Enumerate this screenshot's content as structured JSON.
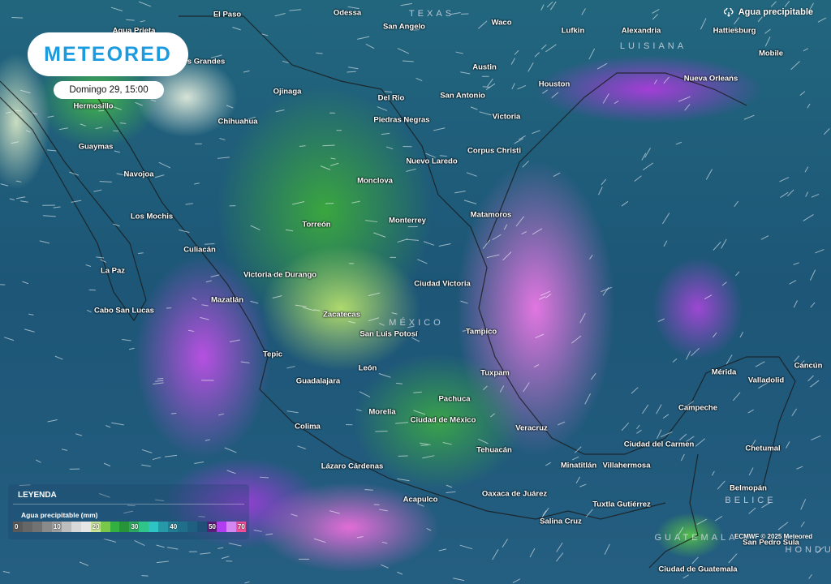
{
  "brand": {
    "logo": "METEORED"
  },
  "timestamp": "Domingo 29, 15:00",
  "layer": {
    "icon": "cloud-rain-icon",
    "label": "Agua precipitable"
  },
  "regions": [
    "TEXAS",
    "LUISIANA",
    "MÉXICO",
    "BELICE",
    "GUATEMALA",
    "HONDURAS"
  ],
  "cities": [
    "El Paso",
    "Odessa",
    "San Angelo",
    "Waco",
    "Lufkin",
    "Alexandria",
    "Hattiesburg",
    "Mobile",
    "Agua Prieta",
    "s Grandes",
    "Austin",
    "Houston",
    "Nueva Orleans",
    "Hermosillo",
    "Ojinaga",
    "Del Rio",
    "San Antonio",
    "Chihuahua",
    "Piedras Negras",
    "Victoria",
    "Guaymas",
    "Corpus Christi",
    "Navojoa",
    "Nuevo Laredo",
    "Monclova",
    "Los Mochis",
    "Matamoros",
    "Torreón",
    "Monterrey",
    "Culiacán",
    "La Paz",
    "Victoria de Durango",
    "Ciudad Victoria",
    "Mazatlán",
    "Cabo San Lucas",
    "Zacatecas",
    "San Luis Potosí",
    "Tampico",
    "Tepic",
    "León",
    "Mérida",
    "Valladolid",
    "Cancún",
    "Guadalajara",
    "Tuxpam",
    "Pachuca",
    "Campeche",
    "Morelia",
    "Ciudad de México",
    "Colima",
    "Veracruz",
    "Tehuacán",
    "Ciudad del Carmen",
    "Chetumal",
    "Lázaro Cárdenas",
    "Minatitlán",
    "Villahermosa",
    "Belmopán",
    "Oaxaca de Juárez",
    "Acapulco",
    "Tuxtla Gutiérrez",
    "Salina Cruz",
    "San Pedro Sula",
    "Ciudad de Guatemala"
  ],
  "legend": {
    "title": "LEYENDA",
    "subtitle": "Agua precipitable (mm)",
    "scale": [
      {
        "color": "#5a5a5a",
        "label": "0"
      },
      {
        "color": "#666666",
        "label": ""
      },
      {
        "color": "#727272",
        "label": ""
      },
      {
        "color": "#8a8a8a",
        "label": ""
      },
      {
        "color": "#a0a0a0",
        "label": "10"
      },
      {
        "color": "#bdbdbd",
        "label": ""
      },
      {
        "color": "#d8d8d8",
        "label": ""
      },
      {
        "color": "#e6e6e6",
        "label": ""
      },
      {
        "color": "#cde69a",
        "label": "20"
      },
      {
        "color": "#7ac84a",
        "label": ""
      },
      {
        "color": "#33b040",
        "label": ""
      },
      {
        "color": "#28943a",
        "label": ""
      },
      {
        "color": "#2ea860",
        "label": "30"
      },
      {
        "color": "#2ec48a",
        "label": ""
      },
      {
        "color": "#2ec4c4",
        "label": ""
      },
      {
        "color": "#2698a8",
        "label": ""
      },
      {
        "color": "#237e94",
        "label": "40"
      },
      {
        "color": "#216e8a",
        "label": ""
      },
      {
        "color": "#1f5f80",
        "label": ""
      },
      {
        "color": "#1e5078",
        "label": ""
      },
      {
        "color": "#5a1e7a",
        "label": "50"
      },
      {
        "color": "#b13cf0",
        "label": ""
      },
      {
        "color": "#d486f2",
        "label": ""
      },
      {
        "color": "#f0509a",
        "label": "70"
      }
    ]
  },
  "credit": "ECMWF © 2025 Meteored"
}
